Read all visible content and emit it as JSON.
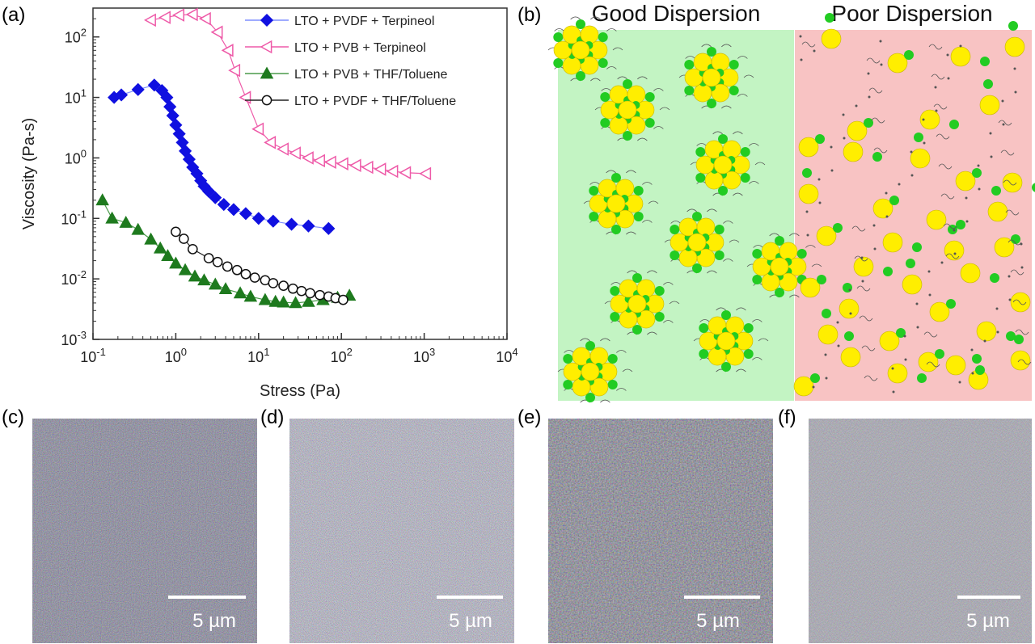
{
  "panel_labels": [
    "(a)",
    "(b)",
    "(c)",
    "(d)",
    "(e)",
    "(f)"
  ],
  "dispersion": {
    "good_title": "Good Dispersion",
    "poor_title": "Poor Dispersion",
    "good_bg": "#c3f4c3",
    "poor_bg": "#f8c3c3",
    "particle_large": "#ffee00",
    "particle_small": "#22cc22"
  },
  "micrographs": [
    {
      "label": "(c)",
      "scale_bar": "5 µm"
    },
    {
      "label": "(d)",
      "scale_bar": "5 µm"
    },
    {
      "label": "(e)",
      "scale_bar": "5 µm"
    },
    {
      "label": "(f)",
      "scale_bar": "5 µm"
    }
  ],
  "chart_data": {
    "type": "scatter",
    "xscale": "log",
    "yscale": "log",
    "xlabel": "Stress (Pa)",
    "ylabel": "Viscosity (Pa-s)",
    "xlim": [
      0.1,
      10000
    ],
    "ylim": [
      0.001,
      300
    ],
    "xticks": [
      {
        "value": 0.1,
        "base": "10",
        "exp": "-1"
      },
      {
        "value": 1,
        "base": "10",
        "exp": "0"
      },
      {
        "value": 10,
        "base": "10",
        "exp": "1"
      },
      {
        "value": 100,
        "base": "10",
        "exp": "2"
      },
      {
        "value": 1000,
        "base": "10",
        "exp": "3"
      },
      {
        "value": 10000,
        "base": "10",
        "exp": "4"
      }
    ],
    "yticks": [
      {
        "value": 0.001,
        "base": "10",
        "exp": "-3"
      },
      {
        "value": 0.01,
        "base": "10",
        "exp": "-2"
      },
      {
        "value": 0.1,
        "base": "10",
        "exp": "-1"
      },
      {
        "value": 1,
        "base": "10",
        "exp": "0"
      },
      {
        "value": 10,
        "base": "10",
        "exp": "1"
      },
      {
        "value": 100,
        "base": "10",
        "exp": "2"
      }
    ],
    "legend_position": "top-right",
    "series": [
      {
        "name": "LTO + PVDF + Terpineol",
        "marker": "diamond",
        "color": "#1010e0",
        "line_color": "#7f8fff",
        "filled": true,
        "points": [
          [
            0.18,
            10
          ],
          [
            0.22,
            11
          ],
          [
            0.35,
            13.5
          ],
          [
            0.55,
            16
          ],
          [
            0.68,
            13
          ],
          [
            0.78,
            10
          ],
          [
            0.85,
            7
          ],
          [
            0.92,
            5
          ],
          [
            1.0,
            3.5
          ],
          [
            1.1,
            2.5
          ],
          [
            1.2,
            1.8
          ],
          [
            1.3,
            1.3
          ],
          [
            1.45,
            0.95
          ],
          [
            1.6,
            0.7
          ],
          [
            1.8,
            0.55
          ],
          [
            2.0,
            0.42
          ],
          [
            2.2,
            0.34
          ],
          [
            2.5,
            0.28
          ],
          [
            3.0,
            0.22
          ],
          [
            3.8,
            0.17
          ],
          [
            5,
            0.14
          ],
          [
            7,
            0.12
          ],
          [
            10,
            0.1
          ],
          [
            15,
            0.09
          ],
          [
            25,
            0.08
          ],
          [
            40,
            0.075
          ],
          [
            70,
            0.068
          ]
        ]
      },
      {
        "name": "LTO + PVB + Terpineol",
        "marker": "triangle-left",
        "color": "#ee5aa8",
        "line_color": "#ee5aa8",
        "filled": false,
        "points": [
          [
            0.5,
            190
          ],
          [
            0.75,
            210
          ],
          [
            1.1,
            230
          ],
          [
            1.6,
            235
          ],
          [
            2.3,
            200
          ],
          [
            3.2,
            120
          ],
          [
            4.3,
            60
          ],
          [
            5.2,
            28
          ],
          [
            7,
            10
          ],
          [
            10,
            3
          ],
          [
            14,
            1.8
          ],
          [
            20,
            1.4
          ],
          [
            28,
            1.2
          ],
          [
            40,
            1.0
          ],
          [
            55,
            0.9
          ],
          [
            75,
            0.85
          ],
          [
            105,
            0.8
          ],
          [
            150,
            0.75
          ],
          [
            210,
            0.7
          ],
          [
            300,
            0.65
          ],
          [
            420,
            0.6
          ],
          [
            600,
            0.57
          ],
          [
            1050,
            0.55
          ]
        ]
      },
      {
        "name": "LTO + PVB + THF/Toluene",
        "marker": "triangle-up",
        "color": "#1e7a1e",
        "line_color": "#4a9a4a",
        "filled": true,
        "points": [
          [
            0.13,
            0.2
          ],
          [
            0.17,
            0.1
          ],
          [
            0.25,
            0.085
          ],
          [
            0.35,
            0.065
          ],
          [
            0.5,
            0.045
          ],
          [
            0.65,
            0.032
          ],
          [
            0.8,
            0.024
          ],
          [
            1.0,
            0.018
          ],
          [
            1.3,
            0.014
          ],
          [
            1.7,
            0.011
          ],
          [
            2.2,
            0.0095
          ],
          [
            3,
            0.0081
          ],
          [
            4,
            0.0068
          ],
          [
            6,
            0.0058
          ],
          [
            8,
            0.0051
          ],
          [
            12,
            0.0045
          ],
          [
            16,
            0.0042
          ],
          [
            20,
            0.0041
          ],
          [
            28,
            0.004
          ],
          [
            40,
            0.0042
          ],
          [
            60,
            0.0045
          ],
          [
            90,
            0.0049
          ],
          [
            125,
            0.0053
          ]
        ]
      },
      {
        "name": "LTO + PVDF + THF/Toluene",
        "marker": "circle",
        "color": "#111111",
        "line_color": "#222222",
        "filled": false,
        "points": [
          [
            1.0,
            0.06
          ],
          [
            1.25,
            0.046
          ],
          [
            1.6,
            0.031
          ],
          [
            2.5,
            0.022
          ],
          [
            3.2,
            0.019
          ],
          [
            4.2,
            0.016
          ],
          [
            5.5,
            0.014
          ],
          [
            7,
            0.012
          ],
          [
            9,
            0.0105
          ],
          [
            12,
            0.0095
          ],
          [
            15,
            0.0085
          ],
          [
            20,
            0.0077
          ],
          [
            26,
            0.0069
          ],
          [
            33,
            0.0063
          ],
          [
            42,
            0.0058
          ],
          [
            55,
            0.0054
          ],
          [
            70,
            0.0051
          ],
          [
            85,
            0.0048
          ],
          [
            105,
            0.0045
          ]
        ]
      }
    ]
  }
}
